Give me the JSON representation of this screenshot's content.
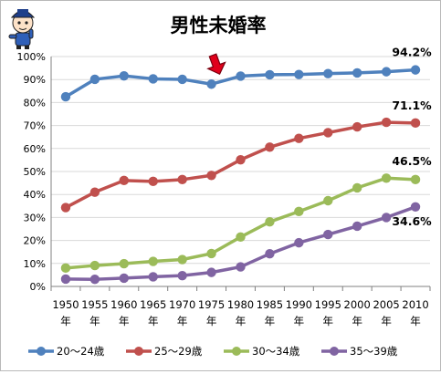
{
  "chart_data": {
    "type": "line",
    "title": "男性未婚率",
    "categories": [
      "1950年",
      "1955年",
      "1960年",
      "1965年",
      "1970年",
      "1975年",
      "1980年",
      "1985年",
      "1990年",
      "1995年",
      "2000年",
      "2005年",
      "2010年"
    ],
    "yticks": [
      "0%",
      "10%",
      "20%",
      "30%",
      "40%",
      "50%",
      "60%",
      "70%",
      "80%",
      "90%",
      "100%"
    ],
    "ylim": [
      0,
      100
    ],
    "grid": true,
    "legend_position": "bottom",
    "series": [
      {
        "name": "20～24歳",
        "color": "#4f81bd",
        "values": [
          82.5,
          90.1,
          91.6,
          90.3,
          90.1,
          88.0,
          91.5,
          92.1,
          92.2,
          92.6,
          92.9,
          93.4,
          94.2
        ],
        "end_label": "94.2%"
      },
      {
        "name": "25～29歳",
        "color": "#c0504d",
        "values": [
          34.3,
          41.0,
          46.1,
          45.7,
          46.5,
          48.3,
          55.1,
          60.6,
          64.4,
          66.9,
          69.4,
          71.4,
          71.1
        ],
        "end_label": "71.1%"
      },
      {
        "name": "30～34歳",
        "color": "#9bbb59",
        "values": [
          8.0,
          9.1,
          9.9,
          10.9,
          11.7,
          14.3,
          21.5,
          28.1,
          32.6,
          37.3,
          42.9,
          47.1,
          46.5
        ],
        "end_label": "46.5%"
      },
      {
        "name": "35～39歳",
        "color": "#8064a2",
        "values": [
          3.2,
          3.1,
          3.6,
          4.2,
          4.7,
          6.1,
          8.5,
          14.2,
          19.0,
          22.6,
          26.2,
          30.0,
          34.6
        ],
        "end_label": "34.6%"
      }
    ],
    "annotation": {
      "type": "arrow",
      "category": "1975年",
      "color": "#e0001b"
    }
  },
  "colors": {
    "grid": "#d9d9d9",
    "axis": "#808080",
    "text": "#000000"
  },
  "icons": {
    "mascot": "cartoon-character-icon"
  }
}
